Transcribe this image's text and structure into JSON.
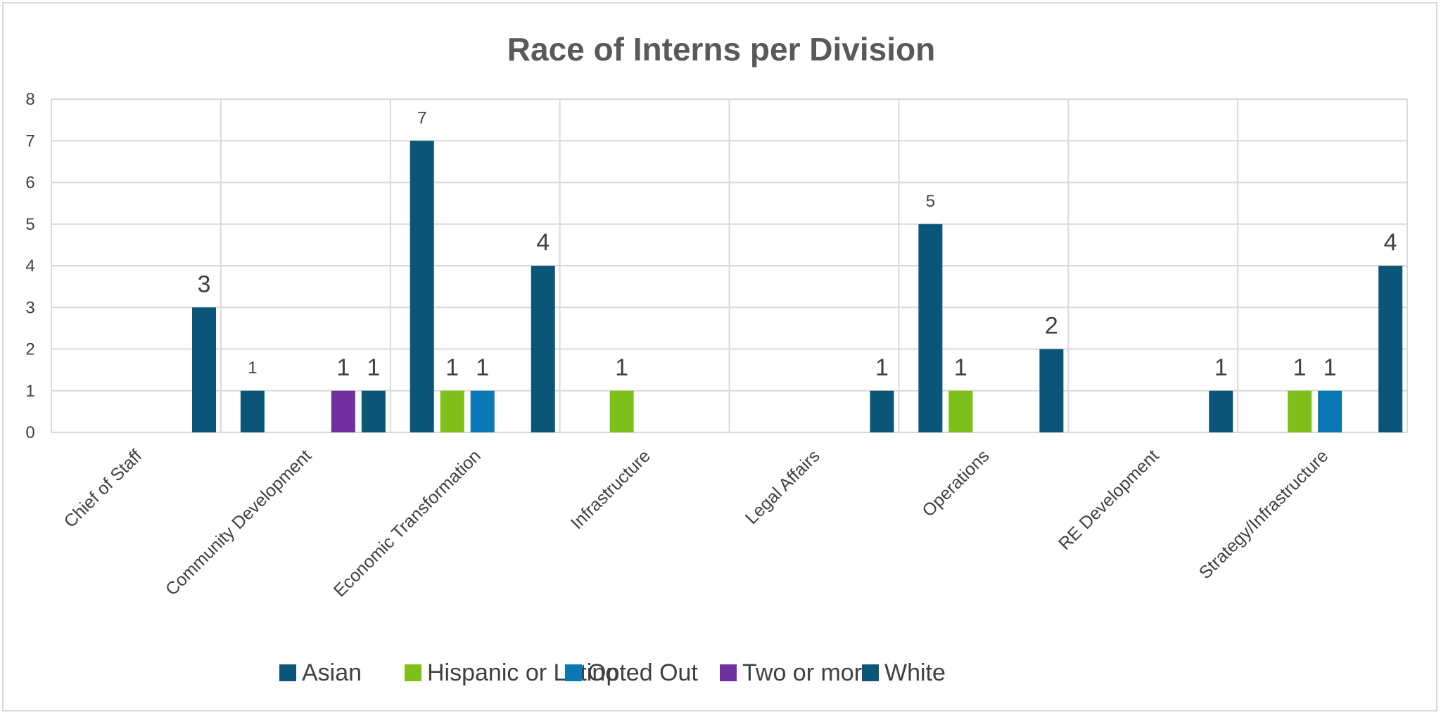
{
  "chart_data": {
    "type": "bar",
    "title": "Race of Interns per Division",
    "xlabel": "",
    "ylabel": "",
    "ylim": [
      0,
      8
    ],
    "yticks": [
      "0",
      "1",
      "2",
      "3",
      "4",
      "5",
      "6",
      "7",
      "8"
    ],
    "grid": true,
    "legend_position": "bottom",
    "categories": [
      "Chief of Staff",
      "Community Development",
      "Economic Transformation",
      "Infrastructure",
      "Legal Affairs",
      "Operations",
      "RE Development",
      "Strategy/Infrastructure"
    ],
    "series": [
      {
        "name": "Asian",
        "color": "#0a5578",
        "values": [
          0,
          1,
          7,
          0,
          0,
          5,
          0,
          0
        ]
      },
      {
        "name": "Hispanic or Latino",
        "color": "#7fbf1a",
        "values": [
          0,
          0,
          1,
          1,
          0,
          1,
          0,
          1
        ]
      },
      {
        "name": "Opted Out",
        "color": "#0a78b4",
        "values": [
          0,
          0,
          1,
          0,
          0,
          0,
          0,
          1
        ]
      },
      {
        "name": "Two or more",
        "color": "#7030a0",
        "values": [
          0,
          1,
          0,
          0,
          0,
          0,
          0,
          0
        ]
      },
      {
        "name": "White",
        "color": "#0a5578",
        "values": [
          3,
          1,
          4,
          0,
          1,
          2,
          1,
          4
        ]
      }
    ],
    "data_labels": [
      {
        "category": "Chief of Staff",
        "series": "White",
        "text": "3"
      },
      {
        "category": "Community Development",
        "series": "Asian",
        "text": "1"
      },
      {
        "category": "Community Development",
        "series": "Two or more",
        "text": "1"
      },
      {
        "category": "Community Development",
        "series": "White",
        "text": "1"
      },
      {
        "category": "Economic Transformation",
        "series": "Asian",
        "text": "7"
      },
      {
        "category": "Economic Transformation",
        "series": "Hispanic or Latino",
        "text": "1"
      },
      {
        "category": "Economic Transformation",
        "series": "Opted Out",
        "text": "1"
      },
      {
        "category": "Economic Transformation",
        "series": "White",
        "text": "4"
      },
      {
        "category": "Infrastructure",
        "series": "Hispanic or Latino",
        "text": "1"
      },
      {
        "category": "Legal Affairs",
        "series": "White",
        "text": "1"
      },
      {
        "category": "Operations",
        "series": "Asian",
        "text": "5"
      },
      {
        "category": "Operations",
        "series": "Hispanic or Latino",
        "text": "1"
      },
      {
        "category": "Operations",
        "series": "White",
        "text": "2"
      },
      {
        "category": "RE Development",
        "series": "White",
        "text": "1"
      },
      {
        "category": "Strategy/Infrastructure",
        "series": "Hispanic or Latino",
        "text": "1"
      },
      {
        "category": "Strategy/Infrastructure",
        "series": "Opted Out",
        "text": "1"
      },
      {
        "category": "Strategy/Infrastructure",
        "series": "White",
        "text": "4"
      }
    ]
  }
}
